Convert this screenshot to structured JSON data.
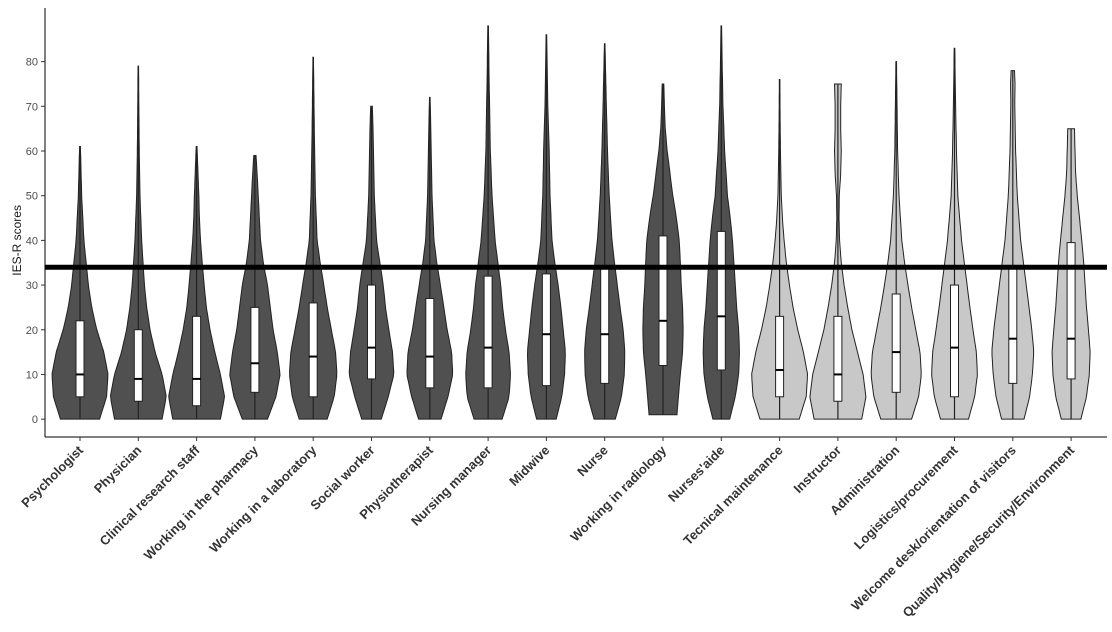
{
  "chart_data": {
    "type": "violin",
    "title": "",
    "xlabel": "",
    "ylabel": "IES-R scores",
    "ylim": [
      -4,
      92
    ],
    "yticks": [
      0,
      10,
      20,
      30,
      40,
      50,
      60,
      70,
      80
    ],
    "grid": false,
    "legend": "none",
    "reference_line": {
      "y": 34,
      "color": "#000000"
    },
    "colors": {
      "dark": "#505050",
      "light": "#c8c8c8",
      "box": "#ffffff",
      "outline": "#222222"
    },
    "categories": [
      "Psychologist",
      "Physician",
      "Clinical research staff",
      "Working in the pharmacy",
      "Working in a laboratory",
      "Social worker",
      "Physiotherapist",
      "Nursing manager",
      "Midwive",
      "Nurse",
      "Working in radiology",
      "Nurses'aide",
      "Tecnical maintenance",
      "Instructor",
      "Administration",
      "Logistics/procurement",
      "Welcome desk/orientation of visitors",
      "Quality/Hygiene/Security/Environment"
    ],
    "series": [
      {
        "min": 0,
        "q1": 5,
        "median": 10,
        "q3": 22,
        "max": 61,
        "fill": "dark",
        "density": [
          [
            0,
            0.7
          ],
          [
            5,
            0.95
          ],
          [
            10,
            1.0
          ],
          [
            15,
            0.85
          ],
          [
            20,
            0.6
          ],
          [
            25,
            0.42
          ],
          [
            30,
            0.3
          ],
          [
            35,
            0.22
          ],
          [
            40,
            0.14
          ],
          [
            45,
            0.1
          ],
          [
            50,
            0.06
          ],
          [
            55,
            0.04
          ],
          [
            61,
            0.015
          ]
        ]
      },
      {
        "min": 0,
        "q1": 4,
        "median": 9,
        "q3": 20,
        "max": 79,
        "fill": "dark",
        "density": [
          [
            0,
            0.85
          ],
          [
            5,
            1.0
          ],
          [
            10,
            0.85
          ],
          [
            15,
            0.6
          ],
          [
            20,
            0.42
          ],
          [
            25,
            0.3
          ],
          [
            30,
            0.22
          ],
          [
            35,
            0.17
          ],
          [
            40,
            0.12
          ],
          [
            50,
            0.06
          ],
          [
            60,
            0.035
          ],
          [
            70,
            0.02
          ],
          [
            79,
            0.01
          ]
        ]
      },
      {
        "min": 0,
        "q1": 3,
        "median": 9,
        "q3": 23,
        "max": 61,
        "fill": "dark",
        "density": [
          [
            0,
            0.85
          ],
          [
            5,
            1.0
          ],
          [
            10,
            0.85
          ],
          [
            15,
            0.65
          ],
          [
            20,
            0.48
          ],
          [
            25,
            0.35
          ],
          [
            30,
            0.27
          ],
          [
            35,
            0.2
          ],
          [
            40,
            0.14
          ],
          [
            45,
            0.1
          ],
          [
            50,
            0.08
          ],
          [
            55,
            0.05
          ],
          [
            61,
            0.015
          ]
        ]
      },
      {
        "min": 0,
        "q1": 6,
        "median": 12.5,
        "q3": 25,
        "max": 59,
        "fill": "dark",
        "density": [
          [
            0,
            0.45
          ],
          [
            5,
            0.75
          ],
          [
            10,
            0.9
          ],
          [
            15,
            0.8
          ],
          [
            20,
            0.65
          ],
          [
            25,
            0.55
          ],
          [
            30,
            0.45
          ],
          [
            35,
            0.3
          ],
          [
            40,
            0.2
          ],
          [
            45,
            0.16
          ],
          [
            50,
            0.12
          ],
          [
            55,
            0.08
          ],
          [
            59,
            0.04
          ]
        ]
      },
      {
        "min": 0,
        "q1": 5,
        "median": 14,
        "q3": 26,
        "max": 81,
        "fill": "dark",
        "density": [
          [
            0,
            0.5
          ],
          [
            5,
            0.75
          ],
          [
            10,
            0.85
          ],
          [
            15,
            0.8
          ],
          [
            20,
            0.65
          ],
          [
            25,
            0.5
          ],
          [
            30,
            0.38
          ],
          [
            35,
            0.25
          ],
          [
            40,
            0.14
          ],
          [
            50,
            0.08
          ],
          [
            60,
            0.05
          ],
          [
            70,
            0.03
          ],
          [
            81,
            0.01
          ]
        ]
      },
      {
        "min": 0,
        "q1": 9,
        "median": 16,
        "q3": 30,
        "max": 70,
        "fill": "dark",
        "density": [
          [
            0,
            0.35
          ],
          [
            5,
            0.6
          ],
          [
            10,
            0.8
          ],
          [
            15,
            0.75
          ],
          [
            20,
            0.62
          ],
          [
            25,
            0.5
          ],
          [
            30,
            0.42
          ],
          [
            35,
            0.3
          ],
          [
            40,
            0.18
          ],
          [
            50,
            0.1
          ],
          [
            60,
            0.07
          ],
          [
            66,
            0.05
          ],
          [
            70,
            0.03
          ]
        ]
      },
      {
        "min": 0,
        "q1": 7,
        "median": 14,
        "q3": 27,
        "max": 72,
        "fill": "dark",
        "density": [
          [
            0,
            0.4
          ],
          [
            5,
            0.65
          ],
          [
            10,
            0.82
          ],
          [
            15,
            0.78
          ],
          [
            20,
            0.62
          ],
          [
            25,
            0.5
          ],
          [
            30,
            0.38
          ],
          [
            35,
            0.25
          ],
          [
            40,
            0.15
          ],
          [
            50,
            0.08
          ],
          [
            60,
            0.05
          ],
          [
            70,
            0.02
          ],
          [
            72,
            0.01
          ]
        ]
      },
      {
        "min": 0,
        "q1": 7,
        "median": 16,
        "q3": 32,
        "max": 88,
        "fill": "dark",
        "density": [
          [
            0,
            0.5
          ],
          [
            5,
            0.75
          ],
          [
            10,
            0.8
          ],
          [
            15,
            0.75
          ],
          [
            20,
            0.62
          ],
          [
            25,
            0.52
          ],
          [
            30,
            0.45
          ],
          [
            35,
            0.35
          ],
          [
            40,
            0.25
          ],
          [
            50,
            0.14
          ],
          [
            60,
            0.08
          ],
          [
            75,
            0.04
          ],
          [
            88,
            0.01
          ]
        ]
      },
      {
        "min": 0,
        "q1": 7.5,
        "median": 19,
        "q3": 32.5,
        "max": 86,
        "fill": "dark",
        "density": [
          [
            0,
            0.35
          ],
          [
            5,
            0.55
          ],
          [
            10,
            0.65
          ],
          [
            15,
            0.68
          ],
          [
            20,
            0.6
          ],
          [
            25,
            0.52
          ],
          [
            30,
            0.42
          ],
          [
            35,
            0.3
          ],
          [
            40,
            0.2
          ],
          [
            50,
            0.13
          ],
          [
            60,
            0.1
          ],
          [
            70,
            0.05
          ],
          [
            86,
            0.01
          ]
        ]
      },
      {
        "min": 0,
        "q1": 8,
        "median": 19,
        "q3": 34,
        "max": 84,
        "fill": "dark",
        "density": [
          [
            0,
            0.38
          ],
          [
            5,
            0.6
          ],
          [
            10,
            0.7
          ],
          [
            15,
            0.72
          ],
          [
            20,
            0.66
          ],
          [
            25,
            0.55
          ],
          [
            30,
            0.45
          ],
          [
            35,
            0.35
          ],
          [
            40,
            0.26
          ],
          [
            50,
            0.16
          ],
          [
            60,
            0.1
          ],
          [
            70,
            0.06
          ],
          [
            84,
            0.01
          ]
        ]
      },
      {
        "min": 1,
        "q1": 12,
        "median": 22,
        "q3": 41,
        "max": 75,
        "fill": "dark",
        "density": [
          [
            1,
            0.5
          ],
          [
            5,
            0.55
          ],
          [
            10,
            0.62
          ],
          [
            15,
            0.7
          ],
          [
            20,
            0.72
          ],
          [
            25,
            0.7
          ],
          [
            30,
            0.65
          ],
          [
            35,
            0.62
          ],
          [
            40,
            0.58
          ],
          [
            45,
            0.48
          ],
          [
            50,
            0.35
          ],
          [
            55,
            0.25
          ],
          [
            60,
            0.15
          ],
          [
            65,
            0.08
          ],
          [
            70,
            0.05
          ],
          [
            75,
            0.03
          ]
        ]
      },
      {
        "min": 0,
        "q1": 11,
        "median": 23,
        "q3": 42,
        "max": 88,
        "fill": "dark",
        "density": [
          [
            0,
            0.3
          ],
          [
            5,
            0.5
          ],
          [
            10,
            0.62
          ],
          [
            15,
            0.65
          ],
          [
            20,
            0.62
          ],
          [
            25,
            0.55
          ],
          [
            30,
            0.5
          ],
          [
            35,
            0.45
          ],
          [
            40,
            0.4
          ],
          [
            45,
            0.32
          ],
          [
            50,
            0.22
          ],
          [
            60,
            0.12
          ],
          [
            70,
            0.06
          ],
          [
            80,
            0.03
          ],
          [
            88,
            0.01
          ]
        ]
      },
      {
        "min": 0,
        "q1": 5,
        "median": 11,
        "q3": 23,
        "max": 76,
        "fill": "light",
        "density": [
          [
            0,
            0.7
          ],
          [
            5,
            0.95
          ],
          [
            10,
            1.0
          ],
          [
            15,
            0.85
          ],
          [
            20,
            0.65
          ],
          [
            25,
            0.48
          ],
          [
            30,
            0.35
          ],
          [
            35,
            0.24
          ],
          [
            40,
            0.16
          ],
          [
            45,
            0.1
          ],
          [
            50,
            0.06
          ],
          [
            60,
            0.03
          ],
          [
            70,
            0.015
          ],
          [
            76,
            0.01
          ]
        ]
      },
      {
        "min": 0,
        "q1": 4,
        "median": 10,
        "q3": 23,
        "max": 75,
        "fill": "light",
        "density": [
          [
            0,
            0.85
          ],
          [
            5,
            1.0
          ],
          [
            10,
            0.9
          ],
          [
            15,
            0.7
          ],
          [
            20,
            0.5
          ],
          [
            25,
            0.35
          ],
          [
            30,
            0.22
          ],
          [
            35,
            0.12
          ],
          [
            40,
            0.06
          ],
          [
            45,
            0.04
          ],
          [
            50,
            0.05
          ],
          [
            55,
            0.1
          ],
          [
            60,
            0.12
          ],
          [
            65,
            0.1
          ],
          [
            70,
            0.1
          ],
          [
            75,
            0.12
          ]
        ]
      },
      {
        "min": 0,
        "q1": 6,
        "median": 15,
        "q3": 28,
        "max": 80,
        "fill": "light",
        "density": [
          [
            0,
            0.55
          ],
          [
            5,
            0.8
          ],
          [
            10,
            0.9
          ],
          [
            15,
            0.85
          ],
          [
            20,
            0.7
          ],
          [
            25,
            0.55
          ],
          [
            30,
            0.42
          ],
          [
            35,
            0.3
          ],
          [
            40,
            0.2
          ],
          [
            50,
            0.1
          ],
          [
            60,
            0.05
          ],
          [
            70,
            0.03
          ],
          [
            80,
            0.01
          ]
        ]
      },
      {
        "min": 0,
        "q1": 5,
        "median": 16,
        "q3": 30,
        "max": 83,
        "fill": "light",
        "density": [
          [
            0,
            0.5
          ],
          [
            5,
            0.72
          ],
          [
            10,
            0.82
          ],
          [
            15,
            0.78
          ],
          [
            20,
            0.66
          ],
          [
            25,
            0.55
          ],
          [
            30,
            0.45
          ],
          [
            35,
            0.35
          ],
          [
            40,
            0.25
          ],
          [
            50,
            0.12
          ],
          [
            60,
            0.07
          ],
          [
            70,
            0.04
          ],
          [
            83,
            0.01
          ]
        ]
      },
      {
        "min": 0,
        "q1": 8,
        "median": 18,
        "q3": 34,
        "max": 78,
        "fill": "light",
        "density": [
          [
            0,
            0.4
          ],
          [
            5,
            0.6
          ],
          [
            10,
            0.7
          ],
          [
            15,
            0.75
          ],
          [
            20,
            0.68
          ],
          [
            25,
            0.58
          ],
          [
            30,
            0.48
          ],
          [
            35,
            0.38
          ],
          [
            40,
            0.28
          ],
          [
            50,
            0.16
          ],
          [
            60,
            0.1
          ],
          [
            70,
            0.07
          ],
          [
            75,
            0.08
          ],
          [
            78,
            0.06
          ]
        ]
      },
      {
        "min": 0,
        "q1": 9,
        "median": 18,
        "q3": 39.5,
        "max": 65,
        "fill": "light",
        "density": [
          [
            0,
            0.35
          ],
          [
            5,
            0.55
          ],
          [
            10,
            0.65
          ],
          [
            15,
            0.68
          ],
          [
            20,
            0.62
          ],
          [
            25,
            0.55
          ],
          [
            30,
            0.5
          ],
          [
            35,
            0.45
          ],
          [
            40,
            0.38
          ],
          [
            45,
            0.3
          ],
          [
            50,
            0.22
          ],
          [
            55,
            0.16
          ],
          [
            60,
            0.14
          ],
          [
            65,
            0.12
          ]
        ]
      }
    ]
  }
}
